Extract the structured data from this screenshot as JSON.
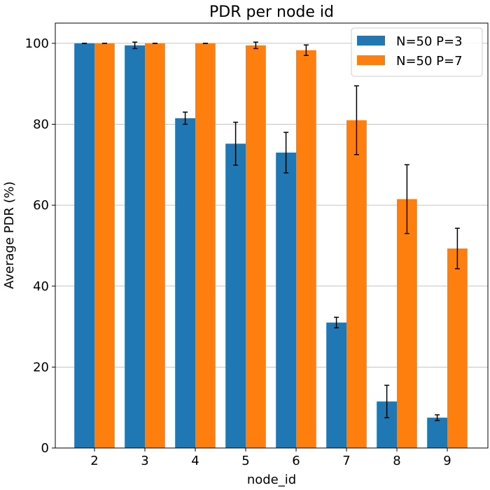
{
  "chart_data": {
    "type": "bar",
    "title": "PDR per node id",
    "xlabel": "node_id",
    "ylabel": "Average PDR (%)",
    "categories": [
      "2",
      "3",
      "4",
      "5",
      "6",
      "7",
      "8",
      "9"
    ],
    "ylim": [
      0,
      105
    ],
    "yticks": [
      0,
      20,
      40,
      60,
      80,
      100
    ],
    "grid": "horizontal",
    "legend_position": "top-right",
    "series": [
      {
        "name": "N=50 P=3",
        "color": "#1f77b4",
        "values": [
          100,
          99.5,
          81.5,
          75.2,
          73.0,
          31.0,
          11.5,
          7.5
        ],
        "errors": [
          0,
          0.8,
          1.5,
          5.3,
          5.0,
          1.3,
          4.0,
          0.7
        ]
      },
      {
        "name": "N=50 P=7",
        "color": "#ff7f0e",
        "values": [
          100,
          100,
          100,
          99.5,
          98.3,
          81.0,
          61.5,
          49.3
        ],
        "errors": [
          0,
          0,
          0,
          0.8,
          1.3,
          8.5,
          8.5,
          5.0
        ]
      }
    ]
  }
}
